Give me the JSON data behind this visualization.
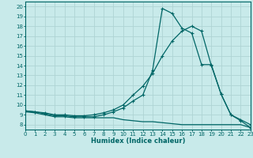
{
  "xlabel": "Humidex (Indice chaleur)",
  "background_color": "#c8eaea",
  "grid_color": "#aed4d4",
  "line_color": "#006666",
  "xlim": [
    0,
    23
  ],
  "ylim": [
    7.5,
    20.5
  ],
  "xticks": [
    0,
    1,
    2,
    3,
    4,
    5,
    6,
    7,
    8,
    9,
    10,
    11,
    12,
    13,
    14,
    15,
    16,
    17,
    18,
    19,
    20,
    21,
    22,
    23
  ],
  "yticks": [
    8,
    9,
    10,
    11,
    12,
    13,
    14,
    15,
    16,
    17,
    18,
    19,
    20
  ],
  "line1_x": [
    0,
    1,
    2,
    3,
    4,
    5,
    6,
    7,
    8,
    9,
    10,
    11,
    12,
    13,
    14,
    15,
    16,
    17,
    18,
    19,
    20,
    21,
    22,
    23
  ],
  "line1_y": [
    9.3,
    9.2,
    9.0,
    8.8,
    8.8,
    8.7,
    8.7,
    8.7,
    8.7,
    8.7,
    8.5,
    8.4,
    8.3,
    8.3,
    8.2,
    8.1,
    8.0,
    8.0,
    8.0,
    8.0,
    8.0,
    8.0,
    8.0,
    7.7
  ],
  "line2_x": [
    0,
    1,
    2,
    3,
    4,
    5,
    6,
    7,
    8,
    9,
    10,
    11,
    12,
    13,
    14,
    15,
    16,
    17,
    18,
    19,
    20,
    21,
    22,
    23
  ],
  "line2_y": [
    9.4,
    9.3,
    9.2,
    9.0,
    9.0,
    8.9,
    8.9,
    9.0,
    9.2,
    9.5,
    10.0,
    11.0,
    11.9,
    13.2,
    15.0,
    16.5,
    17.5,
    18.0,
    17.5,
    14.0,
    11.1,
    9.0,
    8.5,
    8.0
  ],
  "line3_x": [
    0,
    1,
    2,
    3,
    4,
    5,
    6,
    7,
    8,
    9,
    10,
    11,
    12,
    13,
    14,
    15,
    16,
    17,
    18,
    19,
    20,
    21,
    22,
    23
  ],
  "line3_y": [
    9.4,
    9.3,
    9.1,
    8.9,
    8.9,
    8.8,
    8.8,
    8.8,
    9.0,
    9.3,
    9.7,
    10.4,
    11.0,
    13.5,
    19.8,
    19.3,
    17.8,
    17.3,
    14.1,
    14.1,
    11.1,
    9.0,
    8.4,
    7.7
  ]
}
